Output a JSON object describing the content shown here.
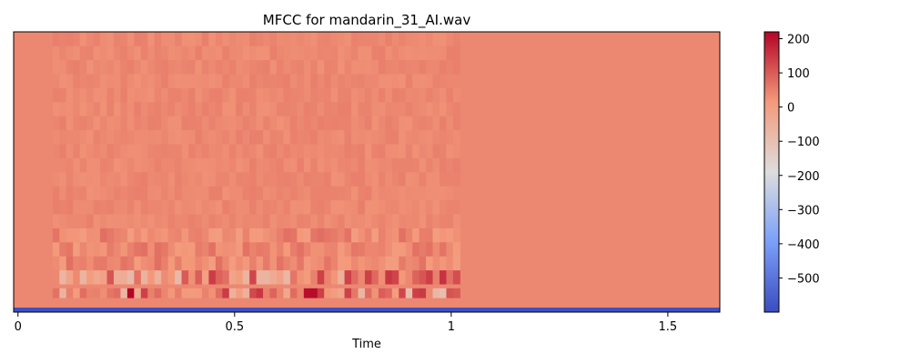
{
  "chart_data": {
    "type": "heatmap",
    "title": "MFCC for mandarin_31_AI.wav",
    "xlabel": "Time",
    "ylabel": "",
    "xlim": [
      -0.01,
      1.62
    ],
    "x_ticks": [
      {
        "value": 0,
        "label": "0"
      },
      {
        "value": 0.5,
        "label": "0.5"
      },
      {
        "value": 1,
        "label": "1"
      },
      {
        "value": 1.5,
        "label": "1.5"
      }
    ],
    "n_coefficients": 20,
    "voiced_segment_time": [
      0.08,
      1.02
    ],
    "colormap": "coolwarm",
    "colorbar": {
      "range": [
        -600,
        220
      ],
      "ticks": [
        {
          "value": 200,
          "label": "200"
        },
        {
          "value": 100,
          "label": "100"
        },
        {
          "value": 0,
          "label": "0"
        },
        {
          "value": -100,
          "label": "−100"
        },
        {
          "value": -200,
          "label": "−200"
        },
        {
          "value": -300,
          "label": "−300"
        },
        {
          "value": -400,
          "label": "−400"
        },
        {
          "value": -500,
          "label": "−500"
        }
      ]
    },
    "background_value": 40,
    "coefficient_0_value": -590,
    "grid": false,
    "legend": "none"
  }
}
